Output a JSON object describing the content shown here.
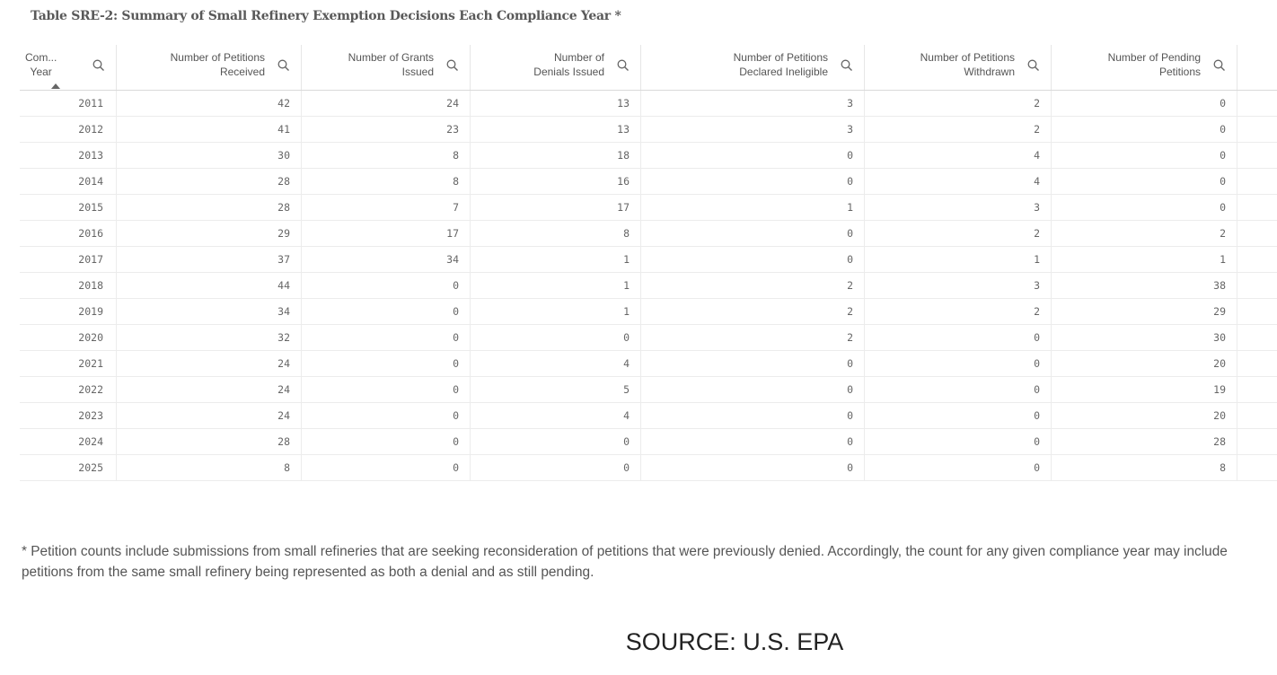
{
  "header": {
    "title": "Table SRE-2: Summary of Small Refinery Exemption Decisions Each Compliance Year *"
  },
  "table": {
    "columns": [
      [
        "Com...",
        "Year"
      ],
      [
        "Number of Petitions",
        "Received"
      ],
      [
        "Number of Grants",
        "Issued"
      ],
      [
        "Number of",
        "Denials Issued"
      ],
      [
        "Number of Petitions",
        "Declared Ineligible"
      ],
      [
        "Number of Petitions",
        "Withdrawn"
      ],
      [
        "Number of Pending",
        "Petitions"
      ]
    ],
    "rows": [
      [
        2011,
        42,
        24,
        13,
        3,
        2,
        0
      ],
      [
        2012,
        41,
        23,
        13,
        3,
        2,
        0
      ],
      [
        2013,
        30,
        8,
        18,
        0,
        4,
        0
      ],
      [
        2014,
        28,
        8,
        16,
        0,
        4,
        0
      ],
      [
        2015,
        28,
        7,
        17,
        1,
        3,
        0
      ],
      [
        2016,
        29,
        17,
        8,
        0,
        2,
        2
      ],
      [
        2017,
        37,
        34,
        1,
        0,
        1,
        1
      ],
      [
        2018,
        44,
        0,
        1,
        2,
        3,
        38
      ],
      [
        2019,
        34,
        0,
        1,
        2,
        2,
        29
      ],
      [
        2020,
        32,
        0,
        0,
        2,
        0,
        30
      ],
      [
        2021,
        24,
        0,
        4,
        0,
        0,
        20
      ],
      [
        2022,
        24,
        0,
        5,
        0,
        0,
        19
      ],
      [
        2023,
        24,
        0,
        4,
        0,
        0,
        20
      ],
      [
        2024,
        28,
        0,
        0,
        0,
        0,
        28
      ],
      [
        2025,
        8,
        0,
        0,
        0,
        0,
        8
      ]
    ]
  },
  "footnote": "* Petition counts include submissions from small refineries that are seeking reconsideration of petitions that were previously denied. Accordingly, the count for any given compliance year may include petitions from the same small refinery being represented as both a denial and as still pending.",
  "source": "SOURCE: U.S. EPA"
}
